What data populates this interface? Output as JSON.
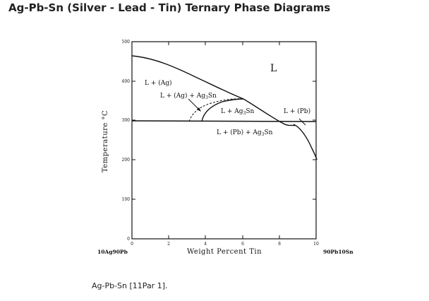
{
  "page": {
    "title": "Ag-Pb-Sn (Silver - Lead - Tin) Ternary Phase Diagrams",
    "caption": "Ag-Pb-Sn [11Par 1]."
  },
  "diagram": {
    "y_axis_label": "Temperature °C",
    "x_axis_label": "Weight Percent Tin",
    "left_composition": "10Ag90Pb",
    "right_composition": "90Pb10Sn",
    "x_ticks": [
      "0",
      "2",
      "4",
      "6",
      "8",
      "10"
    ],
    "y_ticks": [
      "0",
      "100",
      "200",
      "300",
      "400",
      "500"
    ],
    "regions": {
      "liquid": "L",
      "l_ag": "L + (Ag)",
      "l_ag_ag3sn": "L + (Ag) + Ag",
      "l_ag3sn": "L + Ag",
      "l_pb": "L + (Pb)",
      "l_pb_ag3sn": "L + (Pb) + Ag",
      "sub_3": "3",
      "sub_sn": "Sn"
    }
  }
}
